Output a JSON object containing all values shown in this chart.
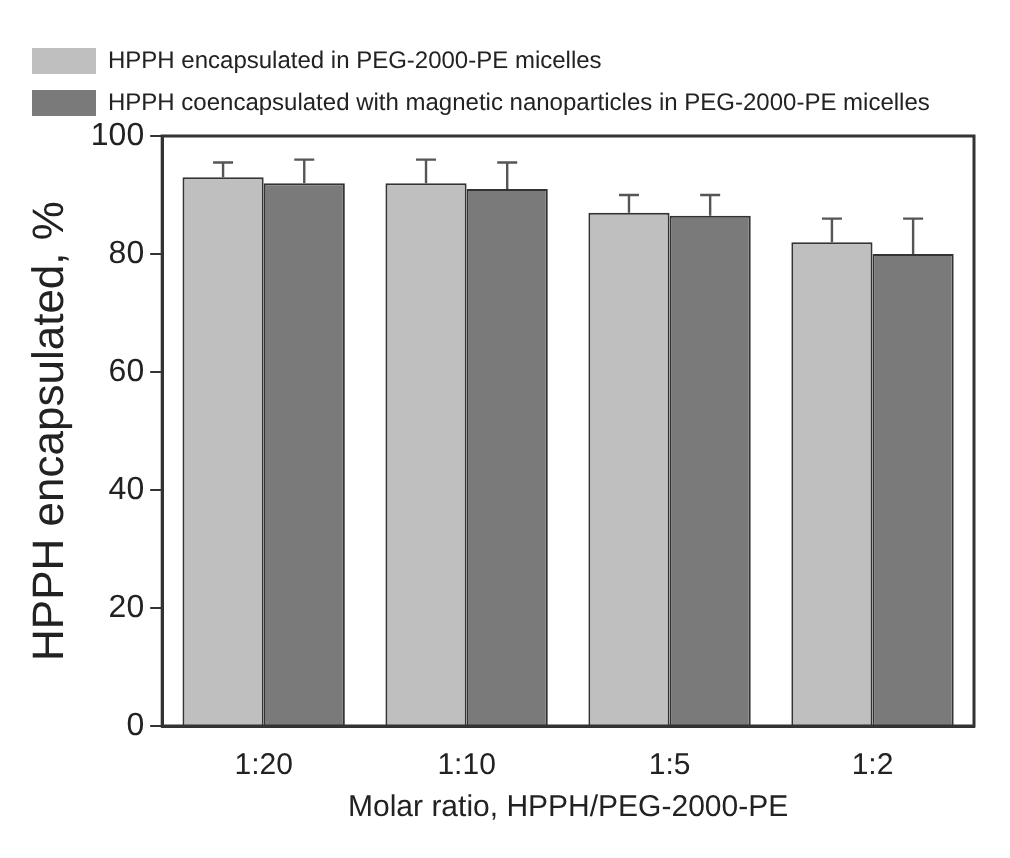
{
  "chart_data": {
    "type": "bar",
    "xlabel": "Molar ratio, HPPH/PEG-2000-PE",
    "ylabel": "HPPH encapsulated, %",
    "categories": [
      "1:20",
      "1:10",
      "1:5",
      "1:2"
    ],
    "series": [
      {
        "name": "HPPH encapsulated in PEG-2000-PE micelles",
        "color": "#bfbfbf",
        "values": [
          93,
          92,
          87,
          82
        ],
        "errors": [
          2.5,
          4,
          3,
          4
        ]
      },
      {
        "name": "HPPH coencapsulated with magnetic nanoparticles in PEG-2000-PE micelles",
        "color": "#7a7a7a",
        "values": [
          92,
          91,
          86.5,
          80
        ],
        "errors": [
          4,
          4.5,
          3.5,
          6
        ]
      }
    ],
    "ylim": [
      0,
      100
    ],
    "yticks": [
      0,
      20,
      40,
      60,
      80,
      100
    ],
    "grid": false,
    "legend": "top"
  }
}
